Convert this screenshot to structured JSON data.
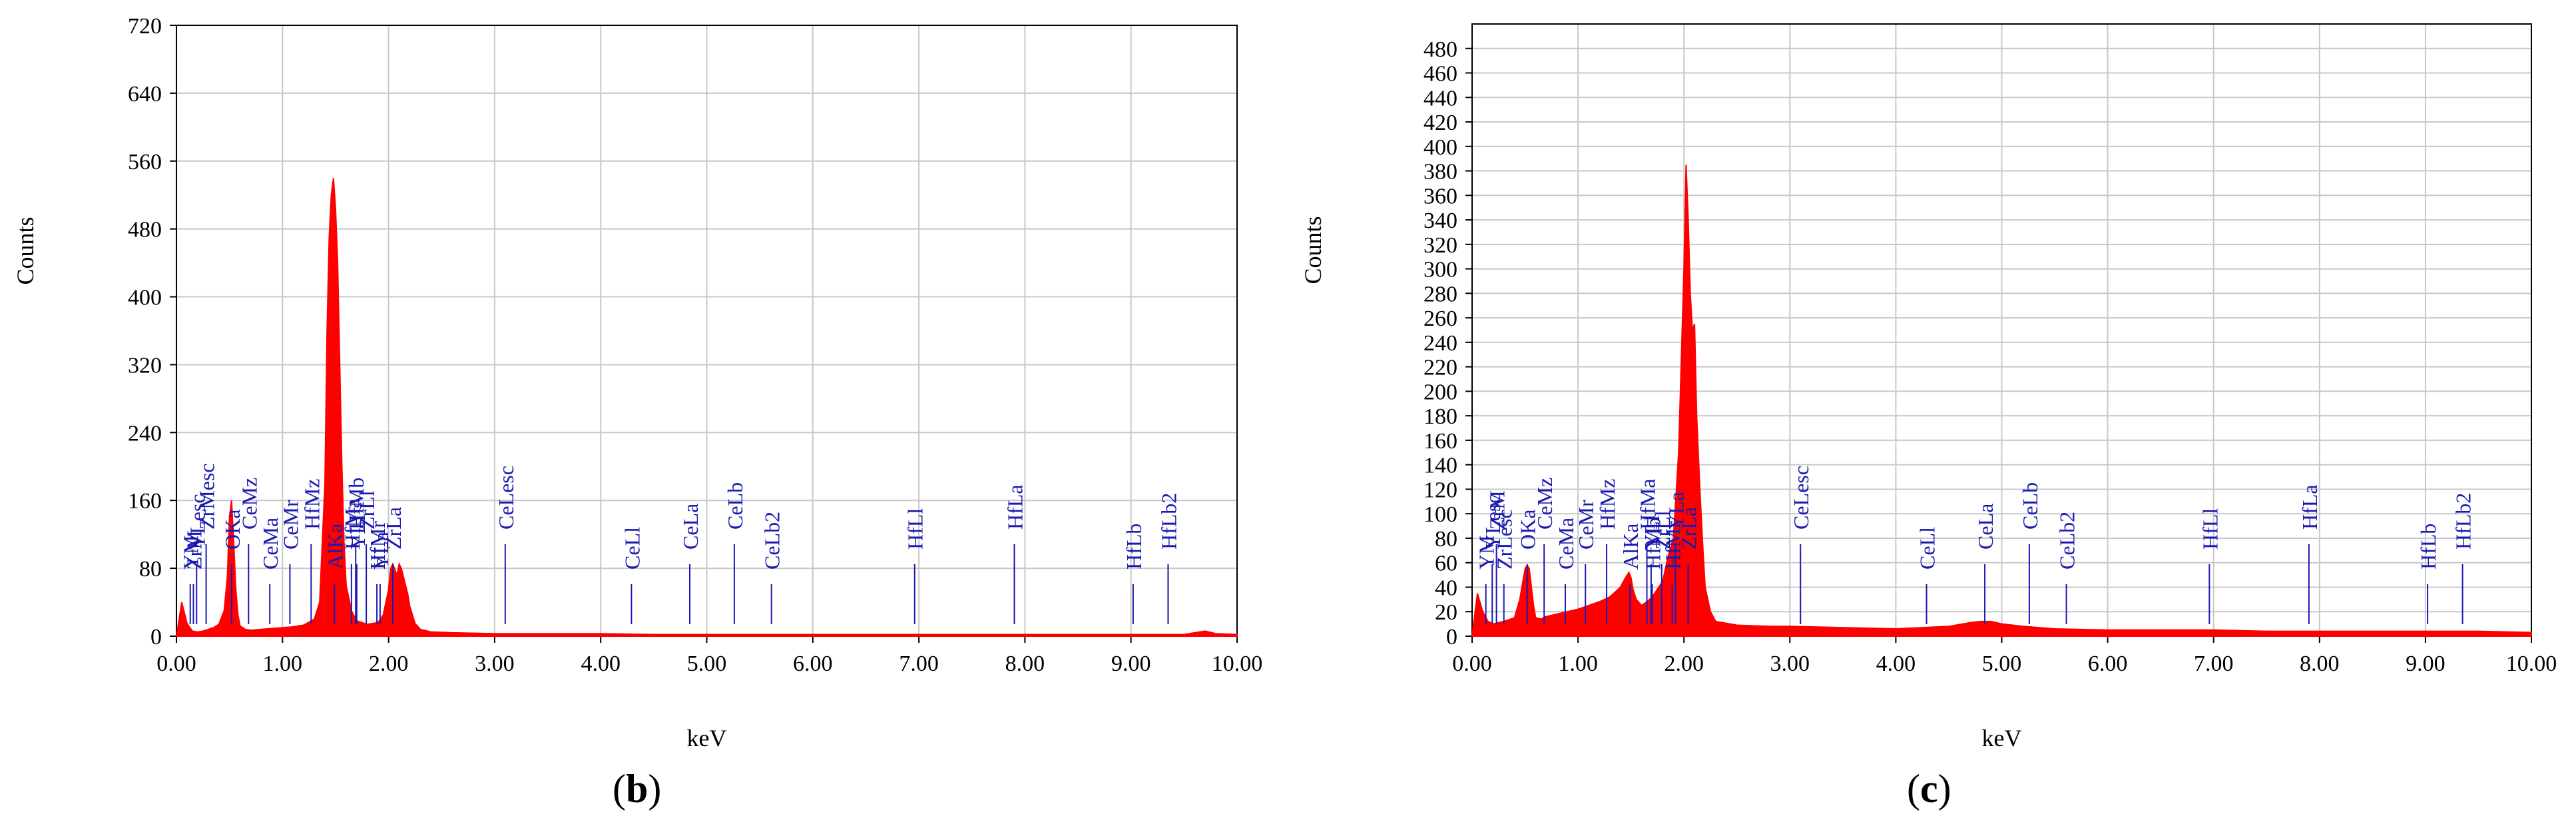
{
  "chart_data": [
    {
      "type": "line",
      "panel_label": "b",
      "xlabel": "keV",
      "ylabel": "Counts",
      "xlim": [
        0,
        10
      ],
      "ylim": [
        0,
        720
      ],
      "x_ticks": [
        "0.00",
        "1.00",
        "2.00",
        "3.00",
        "4.00",
        "5.00",
        "6.00",
        "7.00",
        "8.00",
        "9.00",
        "10.00"
      ],
      "y_ticks": [
        "0",
        "80",
        "160",
        "240",
        "320",
        "400",
        "480",
        "560",
        "640",
        "720"
      ],
      "grid": true,
      "line_color": "#ff0000",
      "marker_color": "#1a1ab0",
      "series": [
        {
          "x": [
            0.0,
            0.05,
            0.1,
            0.15,
            0.2,
            0.25,
            0.3,
            0.35,
            0.4,
            0.45,
            0.48,
            0.5,
            0.52,
            0.54,
            0.56,
            0.58,
            0.6,
            0.65,
            0.7,
            0.8,
            0.9,
            1.0,
            1.1,
            1.2,
            1.3,
            1.35,
            1.4,
            1.42,
            1.44,
            1.46,
            1.48,
            1.5,
            1.52,
            1.54,
            1.56,
            1.58,
            1.6,
            1.65,
            1.7,
            1.8,
            1.9,
            1.95,
            2.0,
            2.02,
            2.04,
            2.06,
            2.08,
            2.1,
            2.12,
            2.14,
            2.16,
            2.18,
            2.2,
            2.25,
            2.3,
            2.4,
            2.6,
            3.0,
            3.5,
            4.0,
            4.5,
            5.0,
            5.5,
            6.0,
            6.5,
            7.0,
            7.5,
            8.0,
            8.5,
            9.0,
            9.5,
            9.65,
            9.7,
            9.8,
            10.0
          ],
          "y": [
            0,
            40,
            15,
            6,
            5,
            6,
            8,
            10,
            14,
            30,
            70,
            140,
            160,
            110,
            55,
            25,
            12,
            8,
            7,
            8,
            9,
            10,
            11,
            13,
            20,
            40,
            180,
            360,
            470,
            520,
            540,
            505,
            440,
            320,
            200,
            110,
            60,
            30,
            18,
            14,
            16,
            25,
            55,
            80,
            85,
            78,
            72,
            85,
            80,
            70,
            60,
            50,
            35,
            15,
            8,
            5,
            4,
            3,
            3,
            3,
            2,
            2,
            2,
            2,
            2,
            2,
            2,
            2,
            2,
            2,
            2,
            5,
            6,
            3,
            2
          ]
        }
      ],
      "peak_markers": [
        {
          "label": "YM",
          "x": 0.13
        },
        {
          "label": "YLesc",
          "x": 0.19
        },
        {
          "label": "ZrMesc",
          "x": 0.28
        },
        {
          "label": "ZrM",
          "x": 0.16
        },
        {
          "label": "OKa",
          "x": 0.52
        },
        {
          "label": "CeMz",
          "x": 0.68
        },
        {
          "label": "CeMa",
          "x": 0.88
        },
        {
          "label": "CeMr",
          "x": 1.07
        },
        {
          "label": "HfMz",
          "x": 1.27
        },
        {
          "label": "AlKa",
          "x": 1.49
        },
        {
          "label": "HfMa",
          "x": 1.65
        },
        {
          "label": "HfMb",
          "x": 1.69
        },
        {
          "label": "HfMr",
          "x": 1.89
        },
        {
          "label": "YLl",
          "x": 1.7
        },
        {
          "label": "ZrLl",
          "x": 1.79
        },
        {
          "label": "YLa",
          "x": 1.92
        },
        {
          "label": "ZrLa",
          "x": 2.04
        },
        {
          "label": "CeLesc",
          "x": 3.1
        },
        {
          "label": "CeLl",
          "x": 4.29
        },
        {
          "label": "CeLa",
          "x": 4.84
        },
        {
          "label": "CeLb",
          "x": 5.26
        },
        {
          "label": "CeLb2",
          "x": 5.61
        },
        {
          "label": "HfLl",
          "x": 6.96
        },
        {
          "label": "HfLa",
          "x": 7.9
        },
        {
          "label": "HfLb",
          "x": 9.02
        },
        {
          "label": "HfLb2",
          "x": 9.35
        }
      ]
    },
    {
      "type": "line",
      "panel_label": "c",
      "xlabel": "keV",
      "ylabel": "Counts",
      "xlim": [
        0,
        10
      ],
      "ylim": [
        0,
        500
      ],
      "x_ticks": [
        "0.00",
        "1.00",
        "2.00",
        "3.00",
        "4.00",
        "5.00",
        "6.00",
        "7.00",
        "8.00",
        "9.00",
        "10.00"
      ],
      "y_ticks": [
        "0",
        "20",
        "40",
        "60",
        "80",
        "100",
        "120",
        "140",
        "160",
        "180",
        "200",
        "220",
        "240",
        "260",
        "280",
        "300",
        "320",
        "340",
        "360",
        "380",
        "400",
        "420",
        "440",
        "460",
        "480"
      ],
      "grid": true,
      "line_color": "#ff0000",
      "marker_color": "#1a1ab0",
      "series": [
        {
          "x": [
            0.0,
            0.05,
            0.1,
            0.15,
            0.2,
            0.3,
            0.4,
            0.45,
            0.5,
            0.52,
            0.54,
            0.56,
            0.58,
            0.6,
            0.65,
            0.7,
            0.8,
            0.9,
            1.0,
            1.1,
            1.2,
            1.3,
            1.4,
            1.45,
            1.48,
            1.5,
            1.52,
            1.55,
            1.6,
            1.65,
            1.7,
            1.8,
            1.85,
            1.9,
            1.95,
            2.0,
            2.02,
            2.04,
            2.06,
            2.08,
            2.1,
            2.12,
            2.15,
            2.18,
            2.2,
            2.25,
            2.3,
            2.5,
            2.8,
            3.0,
            3.5,
            4.0,
            4.5,
            4.7,
            4.8,
            4.9,
            5.0,
            5.2,
            5.5,
            6.0,
            6.5,
            7.0,
            7.5,
            8.0,
            8.5,
            9.0,
            9.5,
            10.0
          ],
          "y": [
            0,
            35,
            20,
            12,
            10,
            12,
            15,
            30,
            55,
            58,
            55,
            40,
            25,
            15,
            14,
            16,
            18,
            20,
            22,
            25,
            28,
            32,
            40,
            48,
            52,
            48,
            38,
            30,
            25,
            28,
            32,
            45,
            65,
            80,
            150,
            300,
            385,
            340,
            280,
            250,
            255,
            180,
            120,
            70,
            40,
            20,
            12,
            9,
            8,
            8,
            7,
            6,
            8,
            11,
            12,
            12,
            10,
            8,
            6,
            5,
            5,
            5,
            4,
            4,
            4,
            4,
            4,
            3
          ]
        }
      ],
      "peak_markers": [
        {
          "label": "YM",
          "x": 0.13
        },
        {
          "label": "YLesc",
          "x": 0.19
        },
        {
          "label": "ZrM",
          "x": 0.23
        },
        {
          "label": "ZrLesc",
          "x": 0.3
        },
        {
          "label": "OKa",
          "x": 0.52
        },
        {
          "label": "CeMz",
          "x": 0.68
        },
        {
          "label": "CeMa",
          "x": 0.88
        },
        {
          "label": "CeMr",
          "x": 1.07
        },
        {
          "label": "HfMz",
          "x": 1.27
        },
        {
          "label": "AlKa",
          "x": 1.49
        },
        {
          "label": "YLl",
          "x": 1.69
        },
        {
          "label": "YLa",
          "x": 1.92
        },
        {
          "label": "HfMr",
          "x": 1.89
        },
        {
          "label": "ZrLl",
          "x": 1.79
        },
        {
          "label": "HfMa",
          "x": 1.65
        },
        {
          "label": "HfMb",
          "x": 1.7
        },
        {
          "label": "ZrLa",
          "x": 2.04
        },
        {
          "label": "CeLesc",
          "x": 3.1
        },
        {
          "label": "CeLl",
          "x": 4.29
        },
        {
          "label": "CeLa",
          "x": 4.84
        },
        {
          "label": "CeLb",
          "x": 5.26
        },
        {
          "label": "CeLb2",
          "x": 5.61
        },
        {
          "label": "HfLl",
          "x": 6.96
        },
        {
          "label": "HfLa",
          "x": 7.9
        },
        {
          "label": "HfLb",
          "x": 9.02
        },
        {
          "label": "HfLb2",
          "x": 9.35
        }
      ]
    }
  ]
}
